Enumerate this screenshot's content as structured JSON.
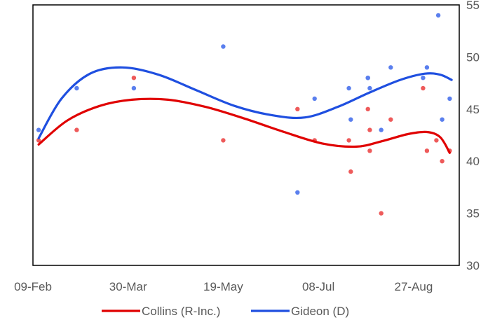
{
  "chart_data": {
    "type": "scatter",
    "title": "",
    "xlabel": "",
    "ylabel": "",
    "x_range": [
      "2020-02-09",
      "2020-09-20"
    ],
    "ylim": [
      30,
      55
    ],
    "x_ticks": [
      "09-Feb",
      "30-Mar",
      "19-May",
      "08-Jul",
      "27-Aug"
    ],
    "y_ticks": [
      "30",
      "35",
      "40",
      "45",
      "50",
      "55"
    ],
    "y_axis_side": "right",
    "grid": false,
    "legend_position": "bottom",
    "series": [
      {
        "name": "Collins (R-Inc.)",
        "color": "#e00000",
        "point_color": "#ee5a5a",
        "points": [
          {
            "x": "2020-02-12",
            "y": 42
          },
          {
            "x": "2020-03-03",
            "y": 43
          },
          {
            "x": "2020-04-02",
            "y": 48
          },
          {
            "x": "2020-05-19",
            "y": 42
          },
          {
            "x": "2020-06-27",
            "y": 45
          },
          {
            "x": "2020-07-06",
            "y": 42
          },
          {
            "x": "2020-07-24",
            "y": 42
          },
          {
            "x": "2020-07-25",
            "y": 39
          },
          {
            "x": "2020-08-03",
            "y": 45
          },
          {
            "x": "2020-08-04",
            "y": 43
          },
          {
            "x": "2020-08-04",
            "y": 41
          },
          {
            "x": "2020-08-10",
            "y": 35
          },
          {
            "x": "2020-08-15",
            "y": 44
          },
          {
            "x": "2020-09-01",
            "y": 47
          },
          {
            "x": "2020-09-03",
            "y": 41
          },
          {
            "x": "2020-09-08",
            "y": 42
          },
          {
            "x": "2020-09-11",
            "y": 40
          },
          {
            "x": "2020-09-15",
            "y": 41
          }
        ],
        "trend": [
          {
            "x": "2020-02-12",
            "y": 41.6
          },
          {
            "x": "2020-02-27",
            "y": 43.9
          },
          {
            "x": "2020-03-15",
            "y": 45.3
          },
          {
            "x": "2020-04-01",
            "y": 45.9
          },
          {
            "x": "2020-04-20",
            "y": 45.9
          },
          {
            "x": "2020-05-10",
            "y": 45.2
          },
          {
            "x": "2020-05-30",
            "y": 44.1
          },
          {
            "x": "2020-06-20",
            "y": 42.8
          },
          {
            "x": "2020-07-10",
            "y": 41.7
          },
          {
            "x": "2020-07-28",
            "y": 41.4
          },
          {
            "x": "2020-08-10",
            "y": 41.9
          },
          {
            "x": "2020-08-24",
            "y": 42.6
          },
          {
            "x": "2020-09-03",
            "y": 42.8
          },
          {
            "x": "2020-09-10",
            "y": 42.3
          },
          {
            "x": "2020-09-15",
            "y": 40.8
          }
        ]
      },
      {
        "name": "Gideon (D)",
        "color": "#1f4fe0",
        "point_color": "#5a7fee",
        "points": [
          {
            "x": "2020-02-12",
            "y": 43
          },
          {
            "x": "2020-03-03",
            "y": 47
          },
          {
            "x": "2020-04-02",
            "y": 47
          },
          {
            "x": "2020-05-19",
            "y": 51
          },
          {
            "x": "2020-06-27",
            "y": 37
          },
          {
            "x": "2020-07-06",
            "y": 46
          },
          {
            "x": "2020-07-24",
            "y": 47
          },
          {
            "x": "2020-07-25",
            "y": 44
          },
          {
            "x": "2020-08-03",
            "y": 48
          },
          {
            "x": "2020-08-03",
            "y": 48
          },
          {
            "x": "2020-08-04",
            "y": 47
          },
          {
            "x": "2020-08-10",
            "y": 43
          },
          {
            "x": "2020-08-15",
            "y": 49
          },
          {
            "x": "2020-09-01",
            "y": 48
          },
          {
            "x": "2020-09-03",
            "y": 49
          },
          {
            "x": "2020-09-09",
            "y": 54
          },
          {
            "x": "2020-09-11",
            "y": 44
          },
          {
            "x": "2020-09-15",
            "y": 46
          }
        ],
        "trend": [
          {
            "x": "2020-02-12",
            "y": 42.2
          },
          {
            "x": "2020-02-24",
            "y": 46.0
          },
          {
            "x": "2020-03-10",
            "y": 48.4
          },
          {
            "x": "2020-03-27",
            "y": 49.0
          },
          {
            "x": "2020-04-15",
            "y": 48.3
          },
          {
            "x": "2020-05-05",
            "y": 46.8
          },
          {
            "x": "2020-05-25",
            "y": 45.3
          },
          {
            "x": "2020-06-14",
            "y": 44.4
          },
          {
            "x": "2020-07-01",
            "y": 44.2
          },
          {
            "x": "2020-07-18",
            "y": 45.2
          },
          {
            "x": "2020-08-04",
            "y": 46.6
          },
          {
            "x": "2020-08-20",
            "y": 47.8
          },
          {
            "x": "2020-09-02",
            "y": 48.4
          },
          {
            "x": "2020-09-10",
            "y": 48.3
          },
          {
            "x": "2020-09-16",
            "y": 47.8
          }
        ]
      }
    ]
  }
}
